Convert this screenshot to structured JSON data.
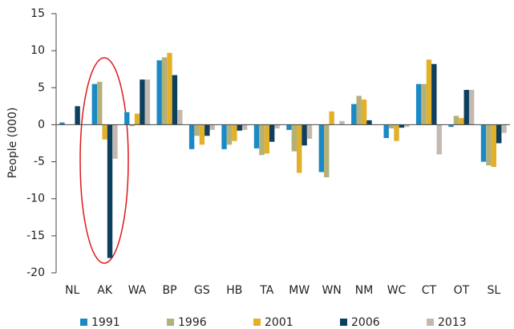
{
  "chart_data": {
    "type": "bar",
    "y_label": "People (000)",
    "categories": [
      "NL",
      "AK",
      "WA",
      "BP",
      "GS",
      "HB",
      "TA",
      "MW",
      "WN",
      "NM",
      "WC",
      "CT",
      "OT",
      "SL"
    ],
    "series": [
      {
        "name": "1991",
        "color": "#1a8ac6",
        "values": [
          0.3,
          5.5,
          1.7,
          8.7,
          -3.3,
          -3.3,
          -3.2,
          -0.7,
          -6.4,
          2.8,
          -1.8,
          5.5,
          -0.3,
          -5.0
        ]
      },
      {
        "name": "1996",
        "color": "#b3b07a",
        "values": [
          0,
          5.8,
          -0.2,
          9.1,
          -1.5,
          -2.7,
          -4.1,
          -3.6,
          -7.1,
          3.9,
          -0.5,
          5.5,
          1.2,
          -5.5
        ]
      },
      {
        "name": "2001",
        "color": "#e3b02a",
        "values": [
          0,
          -2.0,
          1.5,
          9.7,
          -2.7,
          -2.2,
          -3.9,
          -6.5,
          1.8,
          3.4,
          -2.2,
          8.8,
          0.9,
          -5.7
        ]
      },
      {
        "name": "2006",
        "color": "#0d3f5e",
        "values": [
          2.5,
          -18.0,
          6.1,
          6.7,
          -1.5,
          -0.8,
          -2.3,
          -2.8,
          0,
          0.6,
          -0.4,
          8.2,
          4.7,
          -2.5
        ]
      },
      {
        "name": "2013",
        "color": "#c3b9b1",
        "values": [
          0,
          -4.6,
          6.1,
          2.0,
          -0.7,
          -0.7,
          -0.5,
          -1.9,
          0.5,
          0,
          -0.3,
          -4.0,
          4.7,
          -1.1
        ]
      }
    ],
    "ylim": [
      -20,
      15
    ],
    "yticks": [
      -20,
      -15,
      -10,
      -5,
      0,
      5,
      10,
      15
    ],
    "grid": false
  }
}
